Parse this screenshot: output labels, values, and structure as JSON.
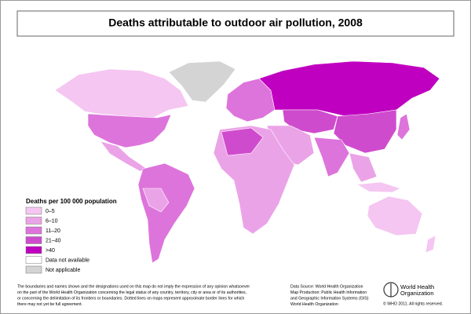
{
  "header": {
    "title": "Deaths attributable to outdoor air pollution, 2008"
  },
  "legend": {
    "title": "Deaths per 100 000 population",
    "items": [
      {
        "label": "0–5",
        "color": "#f5c6f1"
      },
      {
        "label": "6–10",
        "color": "#eba3e8"
      },
      {
        "label": "11–20",
        "color": "#dd74db"
      },
      {
        "label": "21–40",
        "color": "#cf4bcd"
      },
      {
        "label": ">40",
        "color": "#c000c0"
      },
      {
        "label": "Data not available",
        "color": "#ffffff"
      },
      {
        "label": "Not applicable",
        "color": "#d4d4d4"
      }
    ]
  },
  "footer": {
    "disclaimer": [
      "The boundaries and names shown and the designations used on this map do not imply the expression of any opinion whatsoever",
      "on the part of the World Health Organization concerning the legal status of any country, territory, city or area or of its authorities,",
      "or concerning the delimitation of its frontiers or boundaries.  Dotted lines on maps represent approximate border lines for which",
      "there may not yet be full agreement."
    ],
    "source": [
      "Data Source: World Health Organization",
      "Map Production: Public Health Information",
      "and Geographic Information Systems (GIS)",
      "World Health Organization"
    ],
    "logo": [
      "World Health",
      "Organization"
    ],
    "copyright": "© WHO 2011. All rights reserved."
  }
}
